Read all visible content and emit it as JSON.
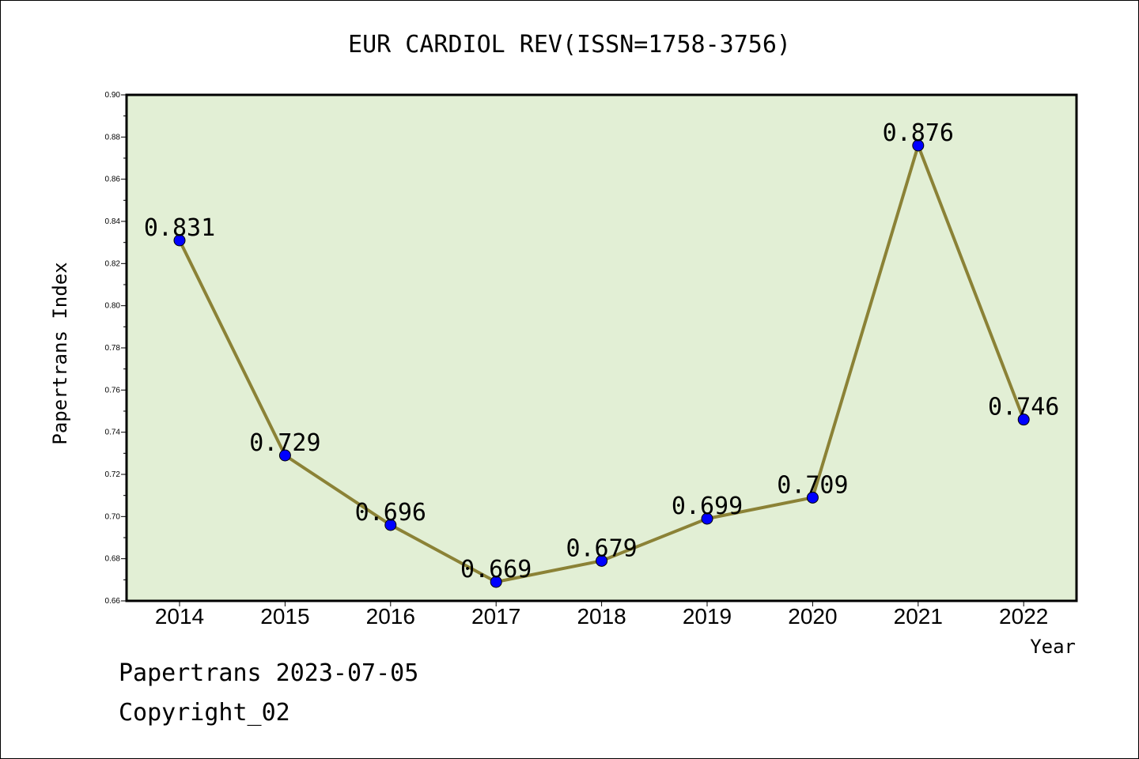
{
  "chart_data": {
    "type": "line",
    "title": "EUR CARDIOL REV(ISSN=1758-3756)",
    "xlabel": "Year",
    "ylabel": "Papertrans Index",
    "categories": [
      "2014",
      "2015",
      "2016",
      "2017",
      "2018",
      "2019",
      "2020",
      "2021",
      "2022"
    ],
    "series": [
      {
        "values": [
          0.831,
          0.729,
          0.696,
          0.669,
          0.679,
          0.699,
          0.709,
          0.876,
          0.746
        ],
        "data_labels": [
          "0.831",
          "0.729",
          "0.696",
          "0.669",
          "0.679",
          "0.699",
          "0.709",
          "0.876",
          "0.746"
        ],
        "line_color": "#8b8236",
        "marker_color": "#0000ff"
      }
    ],
    "ylim": [
      0.66,
      0.9
    ],
    "y_ticks": [
      "0.66",
      "0.68",
      "0.70",
      "0.72",
      "0.74",
      "0.76",
      "0.78",
      "0.80",
      "0.82",
      "0.84",
      "0.86",
      "0.88",
      "0.90"
    ],
    "grid": false,
    "plot_background": "#e2efd5"
  },
  "footer": {
    "date_line": "Papertrans 2023-07-05",
    "copyright_line": "Copyright_02"
  }
}
